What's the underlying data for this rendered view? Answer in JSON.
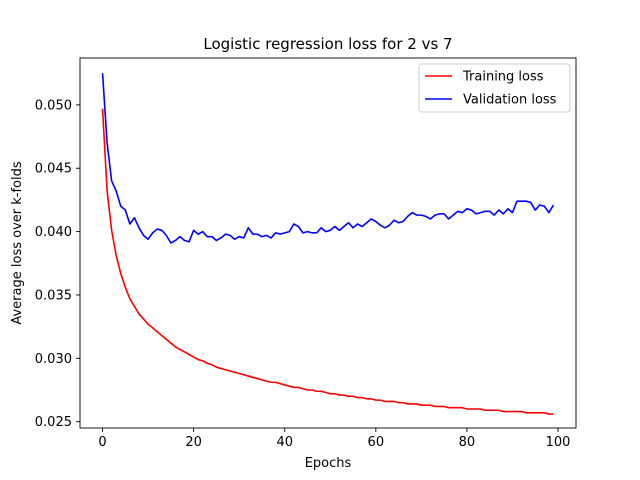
{
  "chart_data": {
    "type": "line",
    "title": "Logistic regression loss for 2 vs 7",
    "xlabel": "Epochs",
    "ylabel": "Average loss over k-folds",
    "xlim": [
      -4.95,
      103.95
    ],
    "ylim": [
      0.0245,
      0.0537
    ],
    "xticks": [
      0,
      20,
      40,
      60,
      80,
      100
    ],
    "xtick_labels": [
      "0",
      "20",
      "40",
      "60",
      "80",
      "100"
    ],
    "yticks": [
      0.025,
      0.03,
      0.035,
      0.04,
      0.045,
      0.05
    ],
    "ytick_labels": [
      "0.025",
      "0.030",
      "0.035",
      "0.040",
      "0.045",
      "0.050"
    ],
    "grid": false,
    "legend_position": "top-right",
    "series": [
      {
        "name": "Training loss",
        "color": "#ff0000",
        "x": [
          0,
          1,
          2,
          3,
          4,
          5,
          6,
          7,
          8,
          9,
          10,
          11,
          12,
          13,
          14,
          15,
          16,
          17,
          18,
          19,
          20,
          21,
          22,
          23,
          24,
          25,
          26,
          27,
          28,
          29,
          30,
          31,
          32,
          33,
          34,
          35,
          36,
          37,
          38,
          39,
          40,
          41,
          42,
          43,
          44,
          45,
          46,
          47,
          48,
          49,
          50,
          51,
          52,
          53,
          54,
          55,
          56,
          57,
          58,
          59,
          60,
          61,
          62,
          63,
          64,
          65,
          66,
          67,
          68,
          69,
          70,
          71,
          72,
          73,
          74,
          75,
          76,
          77,
          78,
          79,
          80,
          81,
          82,
          83,
          84,
          85,
          86,
          87,
          88,
          89,
          90,
          91,
          92,
          93,
          94,
          95,
          96,
          97,
          98,
          99
        ],
        "values": [
          0.0497,
          0.0432,
          0.0401,
          0.0381,
          0.0367,
          0.0356,
          0.0347,
          0.0341,
          0.0335,
          0.0331,
          0.0327,
          0.0324,
          0.0321,
          0.0318,
          0.0315,
          0.0312,
          0.0309,
          0.0307,
          0.0305,
          0.0303,
          0.0301,
          0.0299,
          0.0298,
          0.0296,
          0.0295,
          0.0293,
          0.0292,
          0.0291,
          0.029,
          0.0289,
          0.0288,
          0.0287,
          0.0286,
          0.0285,
          0.0284,
          0.0283,
          0.0282,
          0.0281,
          0.0281,
          0.028,
          0.0279,
          0.0278,
          0.0277,
          0.0277,
          0.0276,
          0.0275,
          0.0275,
          0.0274,
          0.0274,
          0.0273,
          0.0272,
          0.0272,
          0.0271,
          0.0271,
          0.027,
          0.027,
          0.0269,
          0.0269,
          0.0268,
          0.0268,
          0.0267,
          0.0267,
          0.0266,
          0.0266,
          0.0266,
          0.0265,
          0.0265,
          0.0264,
          0.0264,
          0.0264,
          0.0263,
          0.0263,
          0.0263,
          0.0262,
          0.0262,
          0.0262,
          0.0261,
          0.0261,
          0.0261,
          0.0261,
          0.026,
          0.026,
          0.026,
          0.026,
          0.0259,
          0.0259,
          0.0259,
          0.0259,
          0.0258,
          0.0258,
          0.0258,
          0.0258,
          0.0258,
          0.0257,
          0.0257,
          0.0257,
          0.0257,
          0.0257,
          0.0256,
          0.0256
        ]
      },
      {
        "name": "Validation loss",
        "color": "#0000ff",
        "x": [
          0,
          1,
          2,
          3,
          4,
          5,
          6,
          7,
          8,
          9,
          10,
          11,
          12,
          13,
          14,
          15,
          16,
          17,
          18,
          19,
          20,
          21,
          22,
          23,
          24,
          25,
          26,
          27,
          28,
          29,
          30,
          31,
          32,
          33,
          34,
          35,
          36,
          37,
          38,
          39,
          40,
          41,
          42,
          43,
          44,
          45,
          46,
          47,
          48,
          49,
          50,
          51,
          52,
          53,
          54,
          55,
          56,
          57,
          58,
          59,
          60,
          61,
          62,
          63,
          64,
          65,
          66,
          67,
          68,
          69,
          70,
          71,
          72,
          73,
          74,
          75,
          76,
          77,
          78,
          79,
          80,
          81,
          82,
          83,
          84,
          85,
          86,
          87,
          88,
          89,
          90,
          91,
          92,
          93,
          94,
          95,
          96,
          97,
          98,
          99
        ],
        "values": [
          0.0525,
          0.047,
          0.044,
          0.0432,
          0.042,
          0.0417,
          0.0406,
          0.0411,
          0.0403,
          0.0397,
          0.0394,
          0.0399,
          0.0402,
          0.0401,
          0.0397,
          0.0391,
          0.0393,
          0.0396,
          0.0393,
          0.0392,
          0.0401,
          0.0398,
          0.04,
          0.0396,
          0.0396,
          0.0393,
          0.0395,
          0.0398,
          0.0397,
          0.0394,
          0.0396,
          0.0395,
          0.0403,
          0.0398,
          0.0398,
          0.0396,
          0.0397,
          0.0395,
          0.0399,
          0.0398,
          0.0399,
          0.04,
          0.0406,
          0.0404,
          0.0399,
          0.04,
          0.0399,
          0.0399,
          0.0403,
          0.04,
          0.0401,
          0.0404,
          0.0401,
          0.0404,
          0.0407,
          0.0403,
          0.0406,
          0.0404,
          0.0407,
          0.041,
          0.0408,
          0.0405,
          0.0403,
          0.0405,
          0.0409,
          0.0407,
          0.0408,
          0.0412,
          0.0415,
          0.0413,
          0.0413,
          0.0412,
          0.041,
          0.0413,
          0.0414,
          0.0414,
          0.041,
          0.0413,
          0.0416,
          0.0415,
          0.0418,
          0.0417,
          0.0414,
          0.0415,
          0.0416,
          0.0416,
          0.0413,
          0.0417,
          0.0414,
          0.0418,
          0.0415,
          0.0424,
          0.0424,
          0.0424,
          0.0423,
          0.0417,
          0.0421,
          0.042,
          0.0415,
          0.0421
        ]
      }
    ]
  }
}
